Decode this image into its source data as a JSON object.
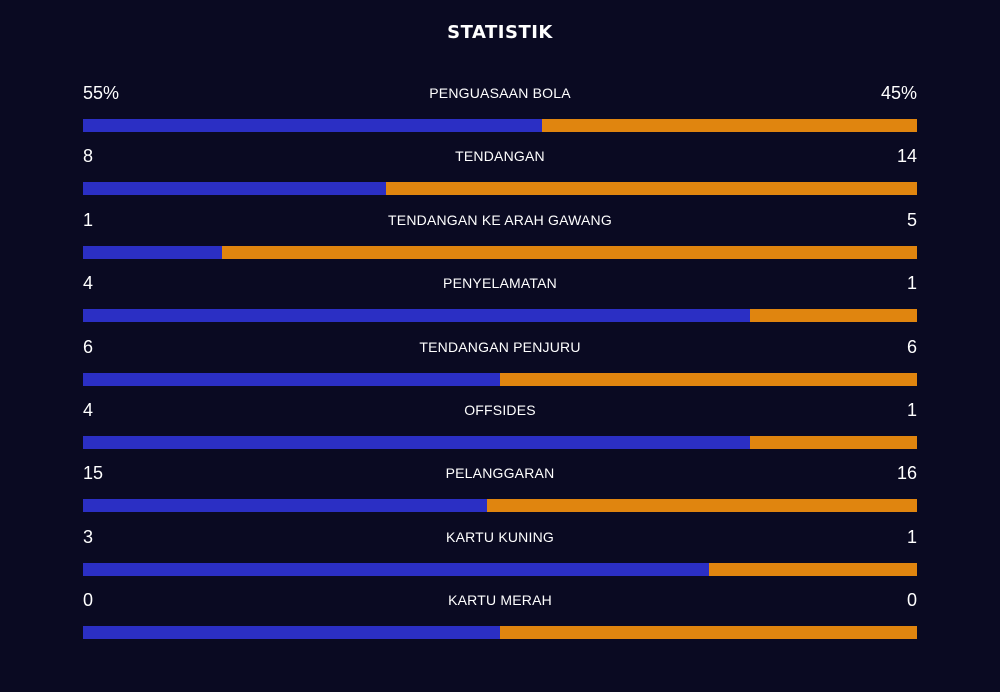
{
  "header": {
    "title": "STATISTIK"
  },
  "colors": {
    "background": "#0a0a22",
    "home": "#2b2fc4",
    "away": "#e0850f",
    "text": "#ffffff"
  },
  "stats": [
    {
      "label": "PENGUASAAN BOLA",
      "home": "55%",
      "away": "45%",
      "home_share": 0.55
    },
    {
      "label": "TENDANGAN",
      "home": "8",
      "away": "14",
      "home_share": 0.3636
    },
    {
      "label": "TENDANGAN KE ARAH GAWANG",
      "home": "1",
      "away": "5",
      "home_share": 0.1667
    },
    {
      "label": "PENYELAMATAN",
      "home": "4",
      "away": "1",
      "home_share": 0.8
    },
    {
      "label": "TENDANGAN PENJURU",
      "home": "6",
      "away": "6",
      "home_share": 0.5
    },
    {
      "label": "OFFSIDES",
      "home": "4",
      "away": "1",
      "home_share": 0.8
    },
    {
      "label": "PELANGGARAN",
      "home": "15",
      "away": "16",
      "home_share": 0.4839
    },
    {
      "label": "KARTU KUNING",
      "home": "3",
      "away": "1",
      "home_share": 0.75
    },
    {
      "label": "KARTU MERAH",
      "home": "0",
      "away": "0",
      "home_share": 0.5
    }
  ]
}
